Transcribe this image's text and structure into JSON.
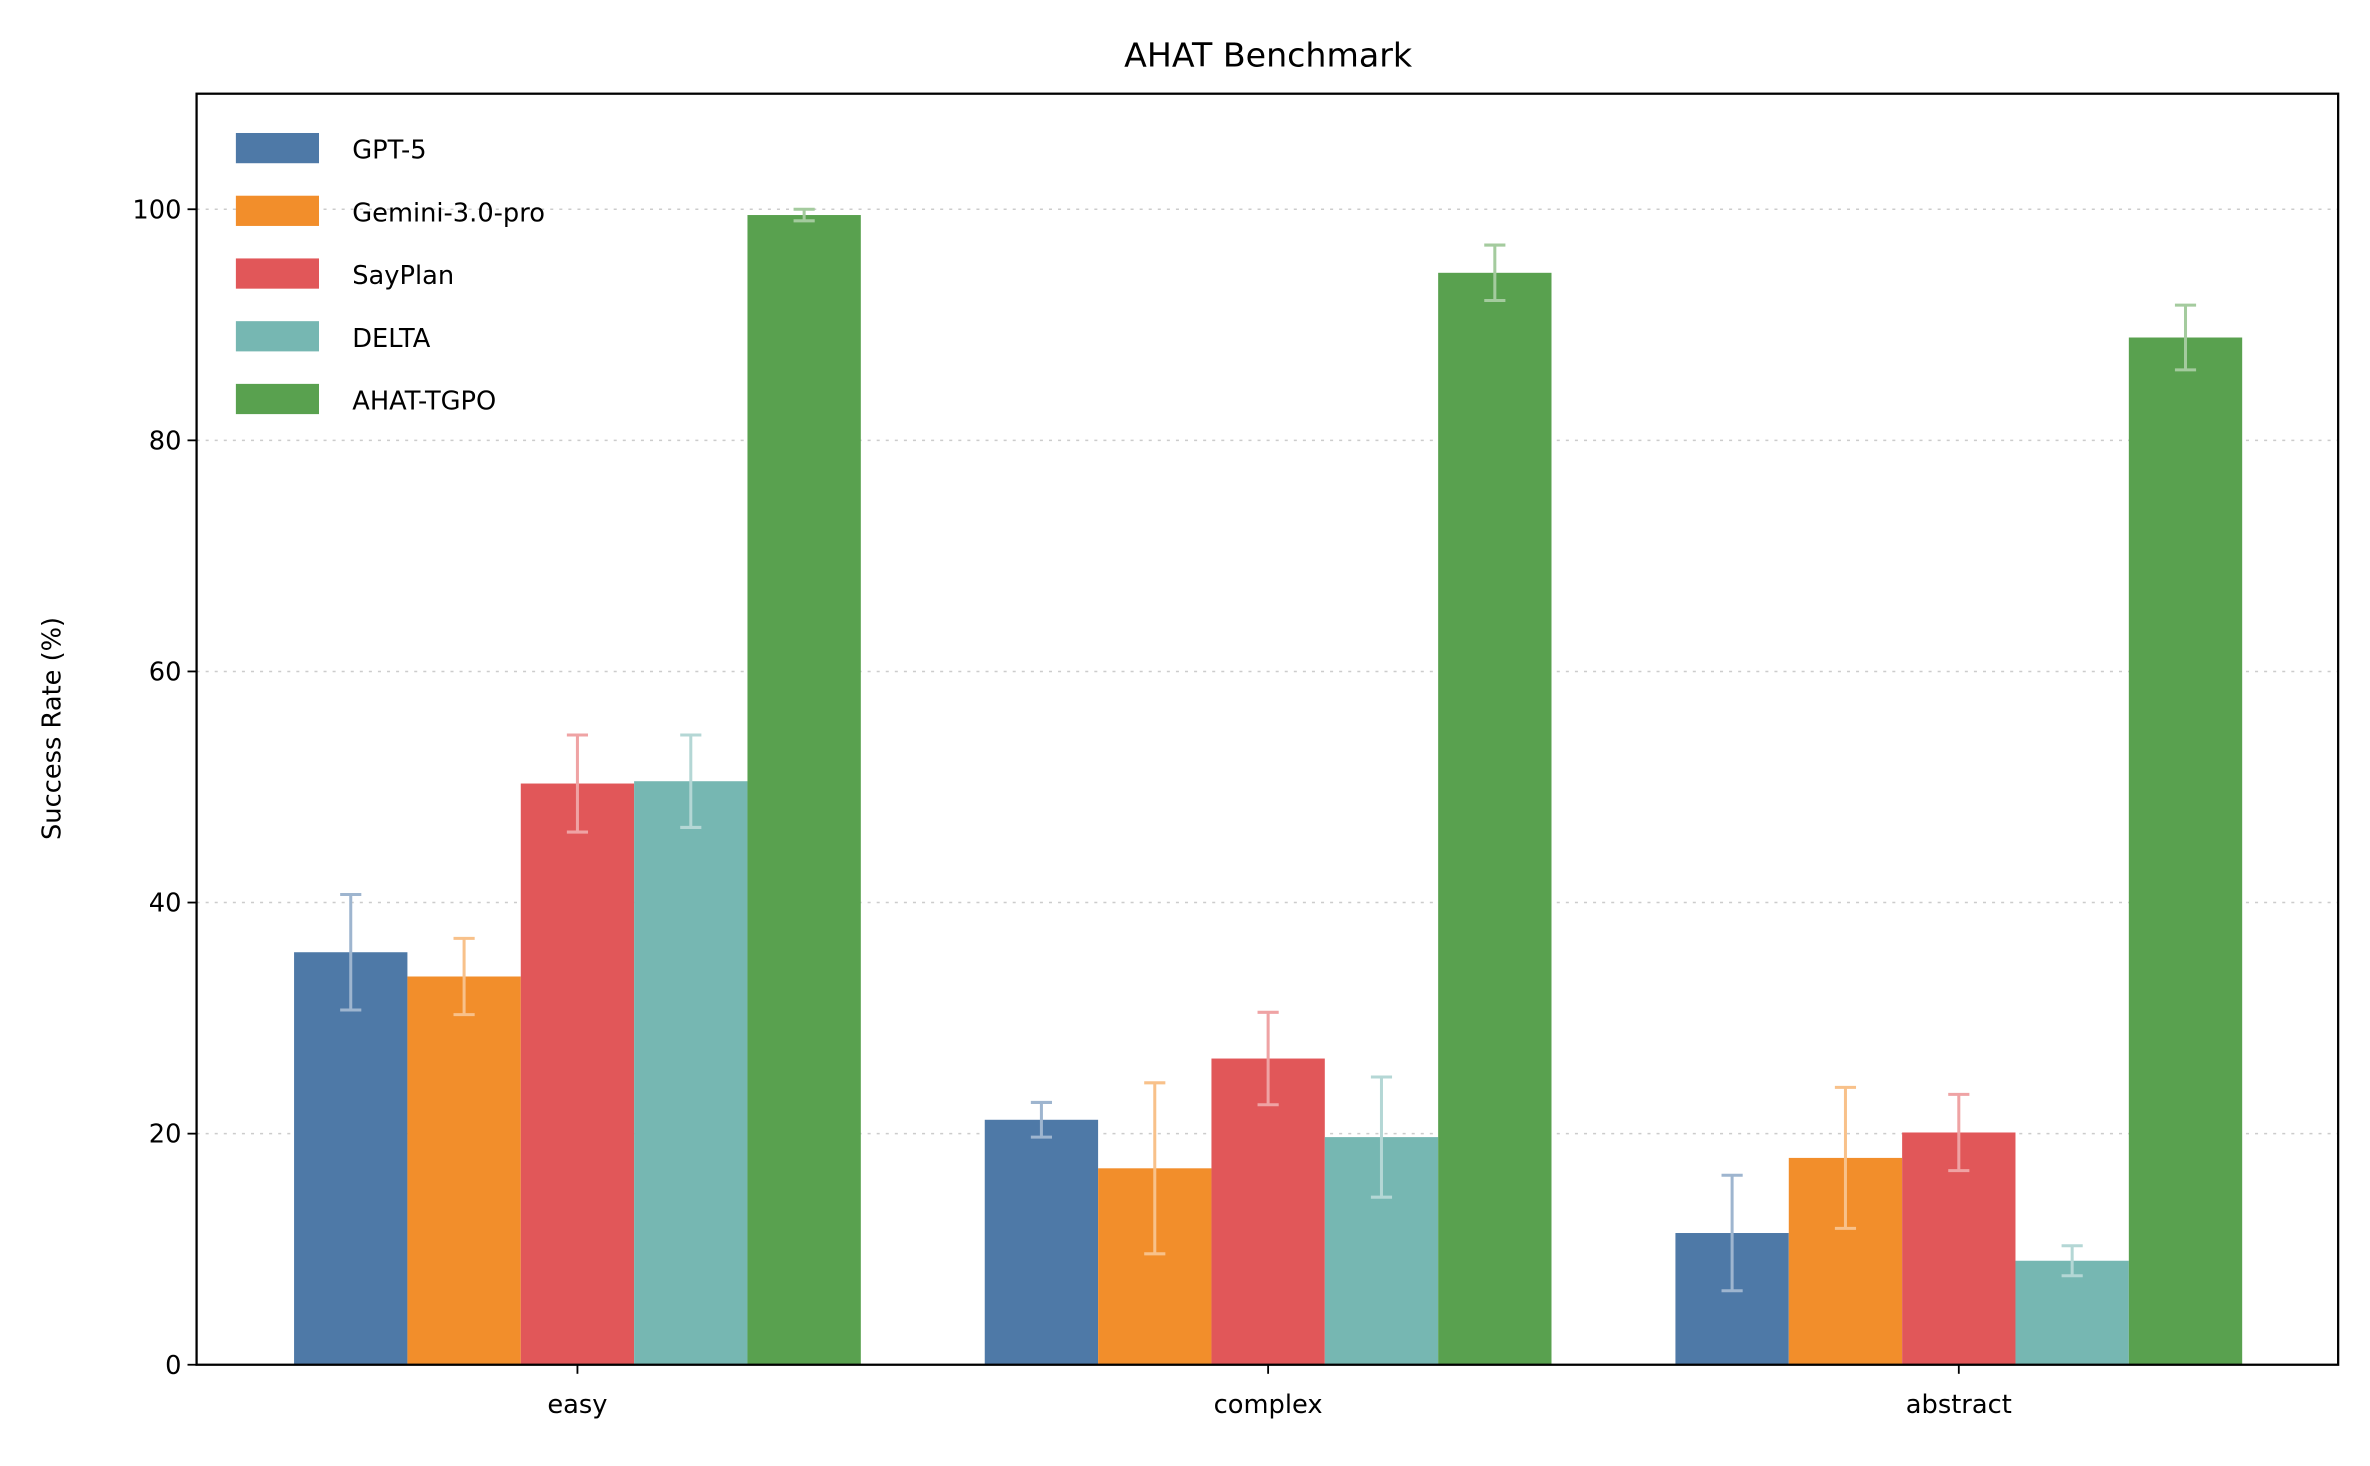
{
  "chart_data": {
    "type": "bar",
    "title": "AHAT Benchmark",
    "xlabel": "",
    "ylabel": "Success Rate (%)",
    "ylim": [
      0,
      110
    ],
    "yticks": [
      0,
      20,
      40,
      60,
      80,
      100
    ],
    "grid": "y-dotted",
    "legend_position": "top-left",
    "categories": [
      "easy",
      "complex",
      "abstract"
    ],
    "series": [
      {
        "name": "GPT-5",
        "color": "#4e79a7",
        "values": [
          35.7,
          21.2,
          11.4
        ],
        "errors": [
          5.0,
          1.5,
          5.0
        ]
      },
      {
        "name": "Gemini-3.0-pro",
        "color": "#f28e2b",
        "values": [
          33.6,
          17.0,
          17.9
        ],
        "errors": [
          3.3,
          7.4,
          6.1
        ]
      },
      {
        "name": "SayPlan",
        "color": "#e15759",
        "values": [
          50.3,
          26.5,
          20.1
        ],
        "errors": [
          4.2,
          4.0,
          3.3
        ]
      },
      {
        "name": "DELTA",
        "color": "#76b7b2",
        "values": [
          50.5,
          19.7,
          9.0
        ],
        "errors": [
          4.0,
          5.2,
          1.3
        ]
      },
      {
        "name": "AHAT-TGPO",
        "color": "#59a14f",
        "values": [
          99.5,
          94.5,
          88.9
        ],
        "errors": [
          0.5,
          2.4,
          2.8
        ]
      }
    ]
  }
}
